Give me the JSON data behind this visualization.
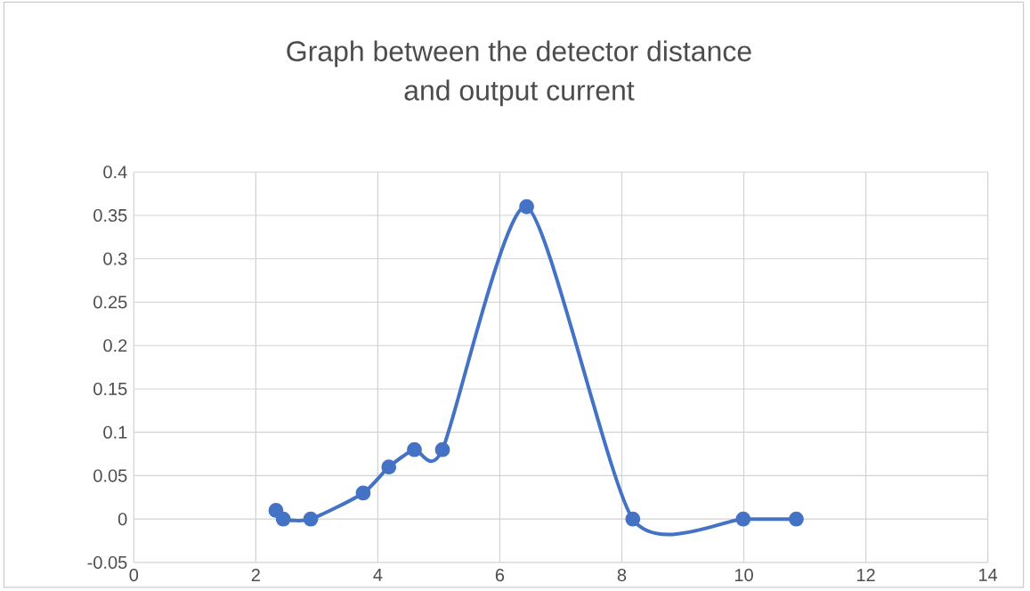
{
  "chart_data": {
    "type": "line",
    "title": "Graph between the detector distance\nand output current",
    "x": [
      2.33,
      2.45,
      2.9,
      3.76,
      4.18,
      4.6,
      5.06,
      6.44,
      8.18,
      9.99,
      10.86
    ],
    "series": [
      {
        "color": "#4472c4",
        "values": [
          0.01,
          0,
          0,
          0.03,
          0.06,
          0.08,
          0.08,
          0.36,
          0,
          0,
          0
        ]
      }
    ],
    "xlim": [
      0,
      14
    ],
    "ylim": [
      -0.05,
      0.4
    ],
    "xticks": [
      0,
      2,
      4,
      6,
      8,
      10,
      12,
      14
    ],
    "yticks": [
      -0.05,
      0,
      0.05,
      0.1,
      0.15,
      0.2,
      0.25,
      0.3,
      0.35,
      0.4
    ],
    "grid": true,
    "marker": "circle"
  }
}
